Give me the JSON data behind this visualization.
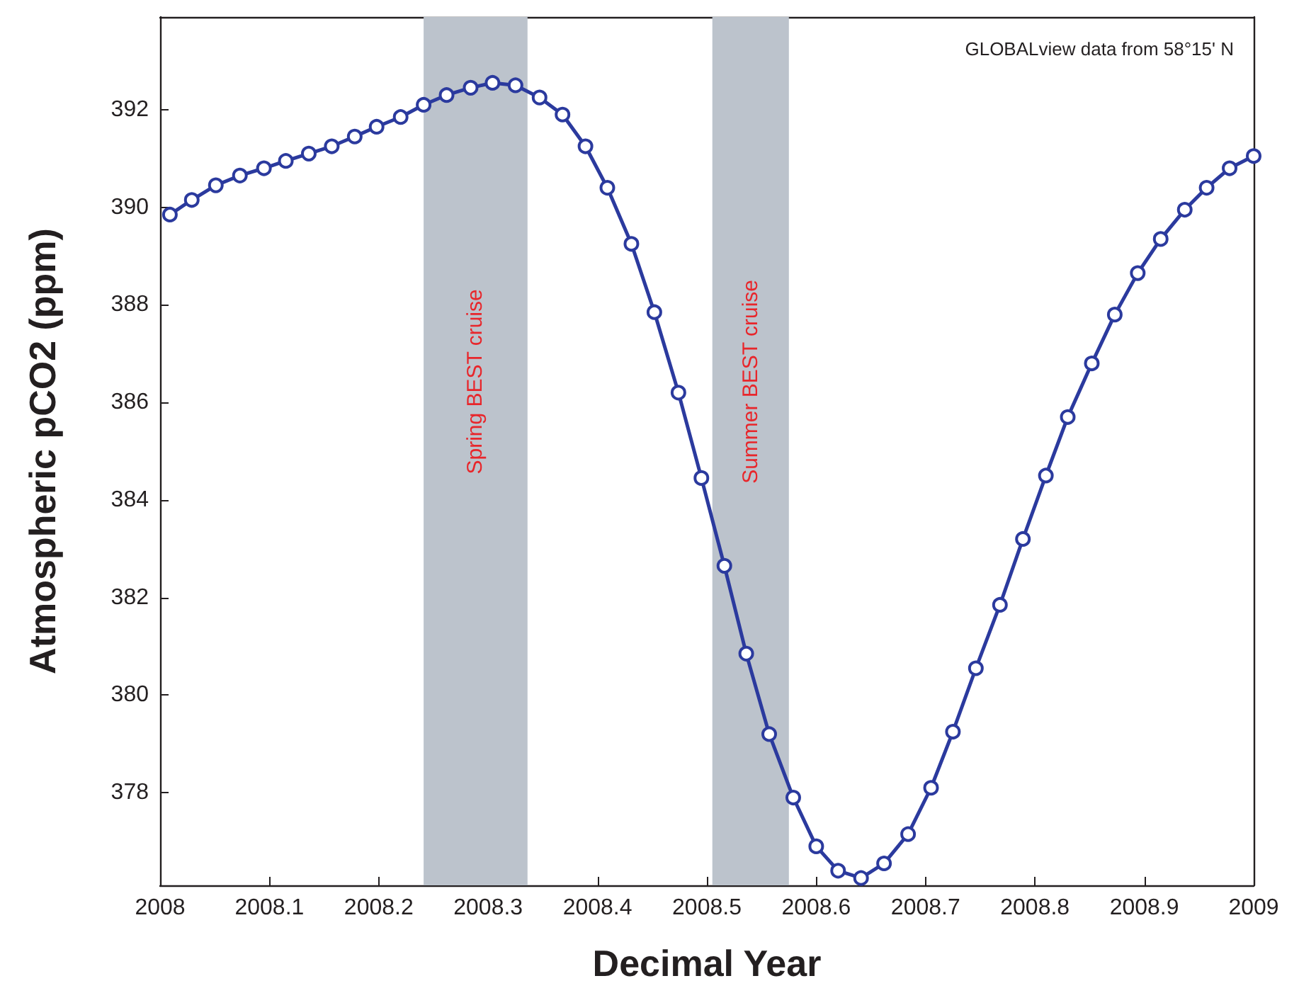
{
  "chart_data": {
    "type": "line",
    "xlabel": "Decimal Year",
    "ylabel": "Atmospheric pCO2 (ppm)",
    "annotations": [
      "GLOBALview data from 58°15' N"
    ],
    "x": [
      2008.009,
      2008.029,
      2008.051,
      2008.073,
      2008.095,
      2008.115,
      2008.136,
      2008.157,
      2008.178,
      2008.198,
      2008.22,
      2008.241,
      2008.262,
      2008.284,
      2008.304,
      2008.325,
      2008.347,
      2008.368,
      2008.389,
      2008.409,
      2008.431,
      2008.452,
      2008.474,
      2008.495,
      2008.516,
      2008.536,
      2008.557,
      2008.579,
      2008.6,
      2008.62,
      2008.641,
      2008.662,
      2008.684,
      2008.705,
      2008.725,
      2008.746,
      2008.768,
      2008.789,
      2008.81,
      2008.83,
      2008.852,
      2008.873,
      2008.894,
      2008.915,
      2008.937,
      2008.957,
      2008.978,
      2009.0
    ],
    "series": [
      {
        "color": "#2b3a9e",
        "values": [
          389.85,
          390.15,
          390.45,
          390.65,
          390.8,
          390.95,
          391.1,
          391.25,
          391.45,
          391.65,
          391.85,
          392.1,
          392.3,
          392.45,
          392.55,
          392.5,
          392.25,
          391.9,
          391.25,
          390.4,
          389.25,
          387.85,
          386.2,
          384.45,
          382.65,
          380.85,
          379.2,
          377.9,
          376.9,
          376.4,
          376.25,
          376.55,
          377.15,
          378.1,
          379.25,
          380.55,
          381.85,
          383.2,
          384.5,
          385.7,
          386.8,
          387.8,
          388.65,
          389.35,
          389.95,
          390.4,
          390.8,
          391.05
        ]
      }
    ],
    "marker": "circle",
    "line_style": "solid",
    "grid": false,
    "xlim": [
      2008,
      2009
    ],
    "xticks": [
      2008,
      2008.1,
      2008.2,
      2008.3,
      2008.4,
      2008.5,
      2008.6,
      2008.7,
      2008.8,
      2008.9,
      2009
    ],
    "ylim": [
      376.1,
      393.9
    ],
    "yticks": [
      378,
      380,
      382,
      384,
      386,
      388,
      390,
      392
    ],
    "bands": [
      {
        "axis": "x",
        "from": 2008.241,
        "to": 2008.336,
        "label": "Spring BEST cruise",
        "color": "#bcc3cc"
      },
      {
        "axis": "x",
        "from": 2008.505,
        "to": 2008.575,
        "label": "Summer BEST cruise",
        "color": "#bcc3cc"
      }
    ]
  }
}
